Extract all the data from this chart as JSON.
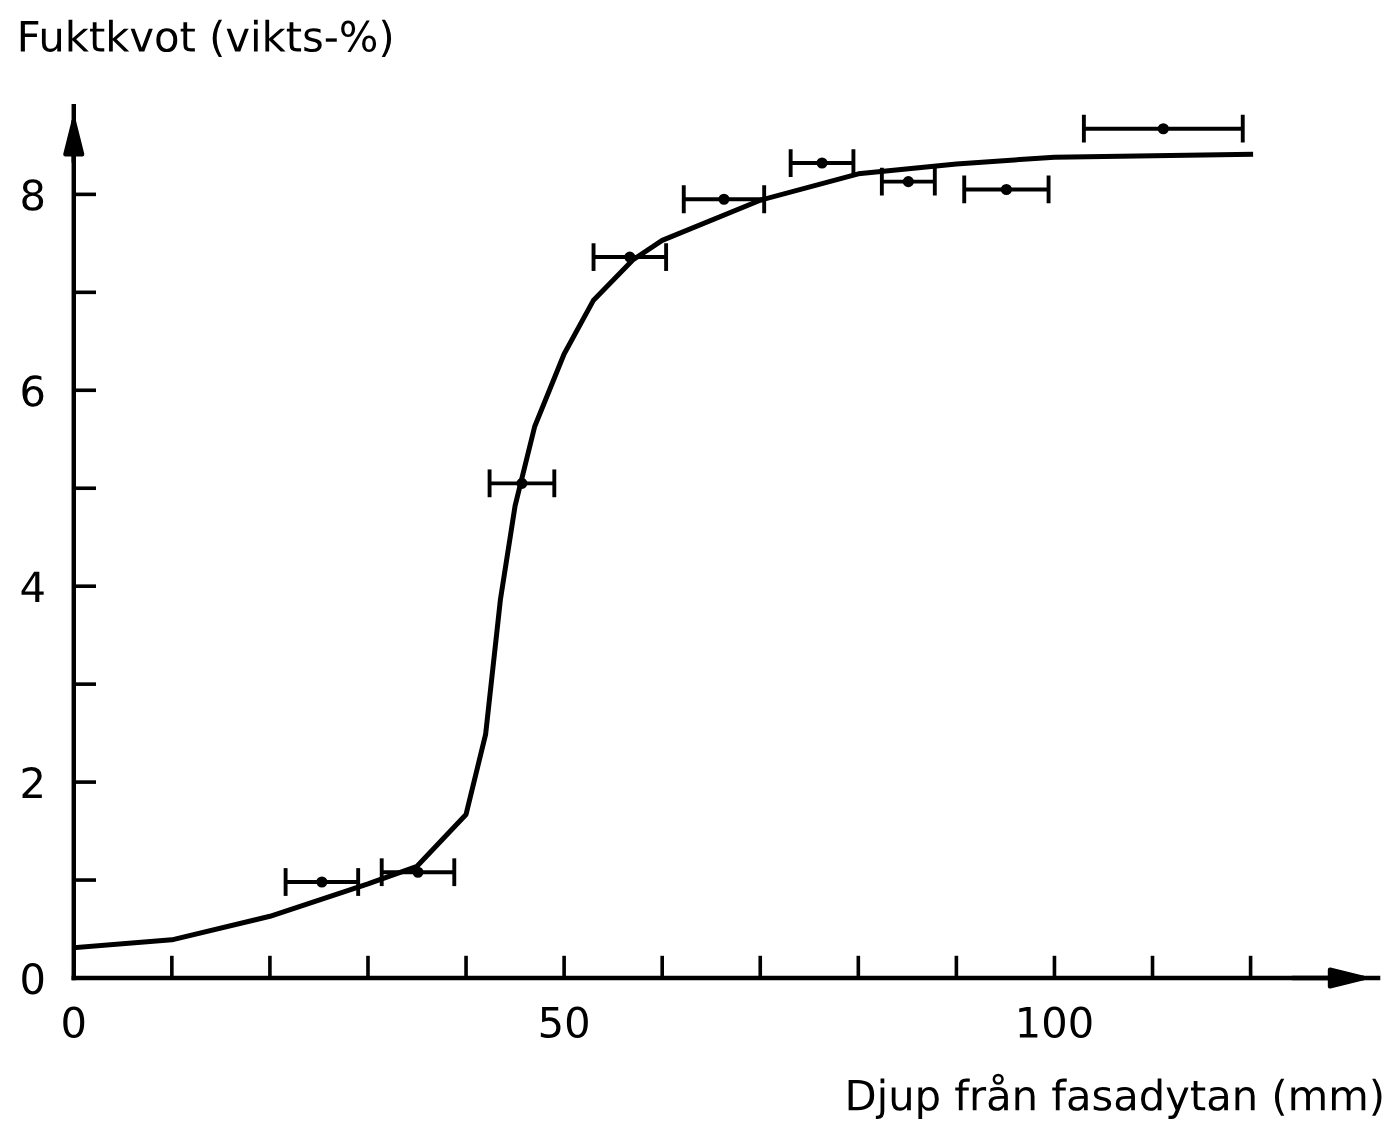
{
  "chart_data": {
    "type": "scatter",
    "ylabel": "Fuktkvot (vikts-%)",
    "xlabel": "Djup från fasadytan (mm)",
    "xlim": [
      0,
      133
    ],
    "ylim": [
      0,
      8.9
    ],
    "xticks": [
      0,
      {
        "value": 10,
        "label": null
      },
      {
        "value": 20,
        "label": null
      },
      {
        "value": 30,
        "label": null
      },
      {
        "value": 40,
        "label": null
      },
      50,
      {
        "value": 60,
        "label": null
      },
      {
        "value": 70,
        "label": null
      },
      {
        "value": 80,
        "label": null
      },
      {
        "value": 90,
        "label": null
      },
      100,
      {
        "value": 110,
        "label": null
      },
      {
        "value": 120,
        "label": null
      }
    ],
    "yticks": [
      0,
      {
        "value": 1,
        "label": null
      },
      2,
      {
        "value": 3,
        "label": null
      },
      4,
      {
        "value": 5,
        "label": null
      },
      6,
      {
        "value": 7,
        "label": null
      },
      8
    ],
    "grid": false,
    "legend": false,
    "series": [
      {
        "color": "#000000",
        "marker": "circle",
        "x": [
          25.3,
          35.1,
          45.7,
          56.7,
          66.3,
          76.3,
          85.1,
          95.1,
          111.1
        ],
        "values": [
          0.98,
          1.08,
          5.05,
          7.36,
          7.95,
          8.32,
          8.13,
          8.05,
          8.67
        ],
        "xerrors": [
          3.7,
          3.7,
          3.3,
          3.7,
          4.1,
          3.2,
          2.7,
          4.3,
          8.1
        ]
      },
      {
        "type": "line",
        "color": "#000000",
        "line_style": "solid",
        "x": [
          0,
          10,
          20,
          30,
          35,
          40,
          42,
          43.5,
          45,
          47,
          50,
          53,
          57,
          60,
          70,
          80,
          90,
          100,
          120
        ],
        "values": [
          0.31,
          0.39,
          0.63,
          0.96,
          1.14,
          1.67,
          2.49,
          3.86,
          4.82,
          5.63,
          6.37,
          6.92,
          7.33,
          7.53,
          7.94,
          8.21,
          8.31,
          8.38,
          8.41
        ]
      }
    ]
  }
}
